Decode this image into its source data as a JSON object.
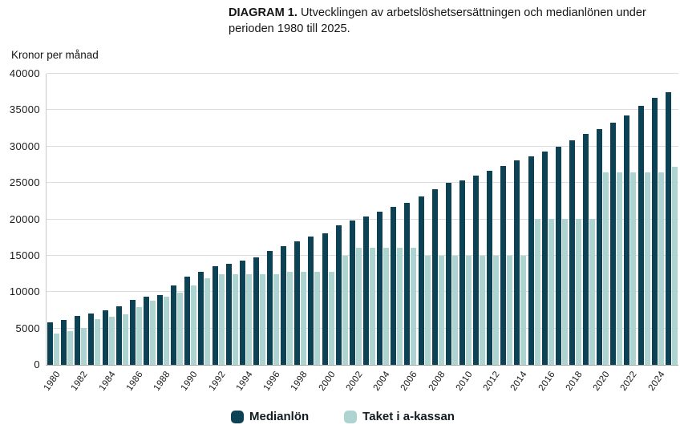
{
  "title": {
    "tag": "DIAGRAM 1.",
    "rest": "Utvecklingen av arbetslöshetsersättningen och medianlönen under perioden 1980 till 2025."
  },
  "y_axis_label": "Kronor per månad",
  "legend": [
    {
      "label": "Medianlön",
      "color": "#0d4154"
    },
    {
      "label": "Taket i a-kassan",
      "color": "#aed4d1"
    }
  ],
  "chart_data": {
    "type": "bar",
    "title": "DIAGRAM 1. Utvecklingen av arbetslöshetsersättningen och medianlönen under perioden 1980 till 2025.",
    "xlabel": "",
    "ylabel": "Kronor per månad",
    "ylim": [
      0,
      40000
    ],
    "yticks": [
      0,
      5000,
      10000,
      15000,
      20000,
      25000,
      30000,
      35000,
      40000
    ],
    "grid": true,
    "legend_position": "bottom",
    "categories": [
      1980,
      1981,
      1982,
      1983,
      1984,
      1985,
      1986,
      1987,
      1988,
      1989,
      1990,
      1991,
      1992,
      1993,
      1994,
      1995,
      1996,
      1997,
      1998,
      1999,
      2000,
      2001,
      2002,
      2003,
      2004,
      2005,
      2006,
      2007,
      2008,
      2009,
      2010,
      2011,
      2012,
      2013,
      2014,
      2015,
      2016,
      2017,
      2018,
      2019,
      2020,
      2021,
      2022,
      2023,
      2024,
      2025
    ],
    "xtick_labels": [
      "1980",
      "1982",
      "1984",
      "1986",
      "1988",
      "1990",
      "1992",
      "1994",
      "1996",
      "1998",
      "2000",
      "2002",
      "2004",
      "2006",
      "2008",
      "2010",
      "2012",
      "2014",
      "2016",
      "2018",
      "2020",
      "2022",
      "2024"
    ],
    "series": [
      {
        "name": "Medianlön",
        "color": "#0d4154",
        "values": [
          5800,
          6200,
          6700,
          7100,
          7500,
          8100,
          8900,
          9400,
          9600,
          10900,
          12100,
          12800,
          13600,
          13900,
          14300,
          14800,
          15600,
          16300,
          17000,
          17600,
          18100,
          19200,
          19800,
          20400,
          21100,
          21700,
          22300,
          23100,
          24100,
          25000,
          25400,
          26000,
          26700,
          27300,
          28100,
          28700,
          29300,
          30000,
          30900,
          31700,
          32400,
          33300,
          34300,
          35600,
          36700,
          37500
        ]
      },
      {
        "name": "Taket i a-kassan",
        "color": "#aed4d1",
        "values": [
          4290,
          4620,
          5060,
          6300,
          6600,
          6930,
          7920,
          8800,
          9350,
          9900,
          10890,
          11950,
          12408,
          12408,
          12408,
          12408,
          12408,
          12760,
          12760,
          12760,
          12760,
          14960,
          16060,
          16060,
          16060,
          16060,
          16060,
          14960,
          14960,
          14960,
          14960,
          14960,
          14960,
          14960,
          14960,
          20020,
          20020,
          20020,
          20020,
          20020,
          26400,
          26400,
          26400,
          26400,
          26400,
          27200
        ]
      }
    ]
  }
}
